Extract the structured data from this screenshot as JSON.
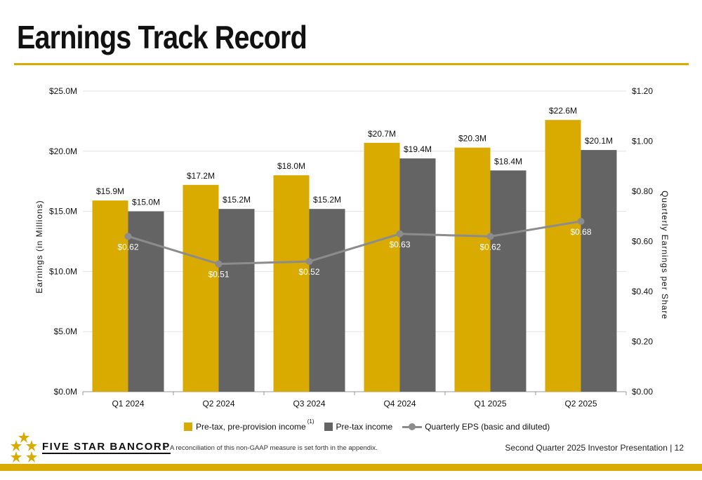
{
  "page": {
    "title": "Earnings Track Record",
    "footnote": "1.    A reconciliation of this non-GAAP measure is set forth in the appendix.",
    "footer_text": "Second Quarter 2025 Investor Presentation |  12",
    "logo_text": "FIVE STAR BANCORP",
    "colors": {
      "accent": "#d9ab00",
      "dark_bar": "#646464",
      "line": "#8c8c8c"
    }
  },
  "chart_data": {
    "type": "bar",
    "categories": [
      "Q1 2024",
      "Q2 2024",
      "Q3 2024",
      "Q4 2024",
      "Q1 2025",
      "Q2 2025"
    ],
    "series": [
      {
        "name": "Pre-tax, pre-provision income",
        "values": [
          15.9,
          17.2,
          18.0,
          20.7,
          20.3,
          22.6
        ],
        "labels": [
          "$15.9M",
          "$17.2M",
          "$18.0M",
          "$20.7M",
          "$20.3M",
          "$22.6M"
        ],
        "color": "#d9ab00",
        "axis": "left",
        "superscript": "(1)"
      },
      {
        "name": "Pre-tax income",
        "values": [
          15.0,
          15.2,
          15.2,
          19.4,
          18.4,
          20.1
        ],
        "labels": [
          "$15.0M",
          "$15.2M",
          "$15.2M",
          "$19.4M",
          "$18.4M",
          "$20.1M"
        ],
        "color": "#646464",
        "axis": "left"
      },
      {
        "name": "Quarterly EPS (basic and diluted)",
        "type": "line",
        "values": [
          0.62,
          0.51,
          0.52,
          0.63,
          0.62,
          0.68
        ],
        "labels": [
          "$0.62",
          "$0.51",
          "$0.52",
          "$0.63",
          "$0.62",
          "$0.68"
        ],
        "color": "#8c8c8c",
        "axis": "right"
      }
    ],
    "ylabel": "Earnings (in Millions)",
    "y2label": "Quarterly Earnings per Share",
    "ylim": [
      0,
      25
    ],
    "y2lim": [
      0,
      1.2
    ],
    "yticks": [
      "$0.0M",
      "$5.0M",
      "$10.0M",
      "$15.0M",
      "$20.0M",
      "$25.0M"
    ],
    "y2ticks": [
      "$0.00",
      "$0.20",
      "$0.40",
      "$0.60",
      "$0.80",
      "$1.00",
      "$1.20"
    ],
    "grid": true,
    "legend": "bottom"
  }
}
